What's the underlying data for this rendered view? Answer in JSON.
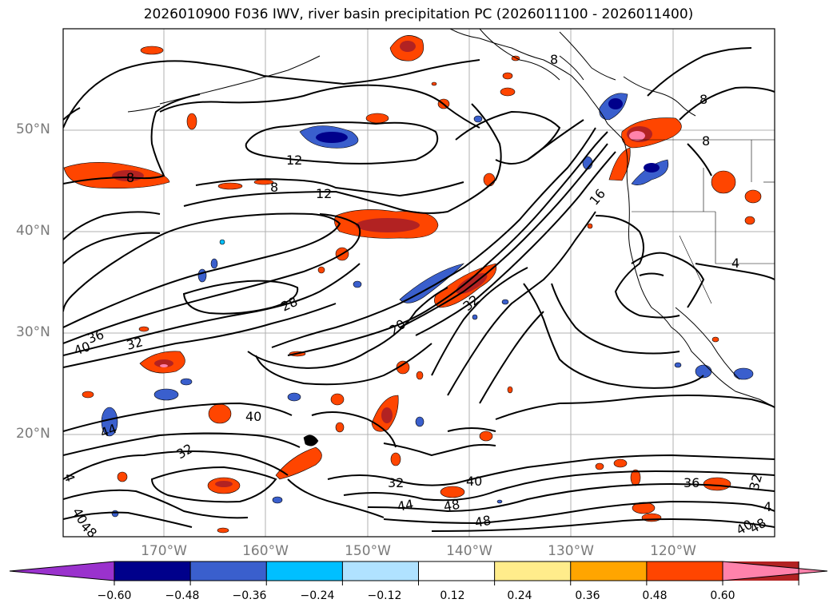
{
  "title": "2026010900 F036 IWV, river basin precipitation PC (2026011100 - 2026011400)",
  "lat_labels": [
    "50°N",
    "40°N",
    "30°N",
    "20°N"
  ],
  "lon_labels": [
    "170°W",
    "160°W",
    "150°W",
    "140°W",
    "130°W",
    "120°W"
  ],
  "colorbar": {
    "ticks": [
      "−0.60",
      "−0.48",
      "−0.36",
      "−0.24",
      "−0.12",
      "0.12",
      "0.24",
      "0.36",
      "0.48",
      "0.60"
    ],
    "colors": [
      "#9a32cd",
      "#00008b",
      "#3a5fcd",
      "#00bfff",
      "#b0e2ff",
      "#ffffff",
      "#ffec8b",
      "#ffa500",
      "#ff4500",
      "#b22222",
      "#ff82ab"
    ]
  },
  "contour_labels": [
    "8",
    "12",
    "8",
    "12",
    "8",
    "16",
    "8",
    "28",
    "36",
    "40",
    "32",
    "20",
    "32",
    "40",
    "44",
    "32",
    "40",
    "48",
    "44",
    "48",
    "36",
    "32",
    "40",
    "48",
    "4",
    "4",
    "32",
    "40",
    "48",
    "8",
    "4"
  ]
}
